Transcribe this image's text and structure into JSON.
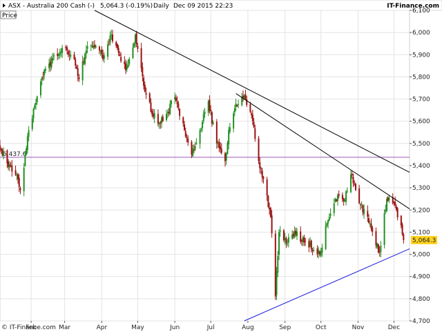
{
  "header": {
    "symbol_icon": "chevron-right-icon",
    "title": "ASX - Australia 200 Cash (-)",
    "last": "5,064.3 (-0.19%)",
    "period": "Daily",
    "timestamp": "Dec 09 2015 22:23",
    "brand": "IT-Finance.com"
  },
  "panel": {
    "label": "Price"
  },
  "footer": {
    "copyright": "© IT-Finance.com"
  },
  "colors": {
    "up": "#1f8f1f",
    "down": "#9a1010",
    "trend": "#000000",
    "support": "#1a1adf",
    "level": "#9b59b6",
    "badge": "#ffd21f",
    "grid": "#e3e3e3"
  },
  "chart_data": {
    "type": "candlestick",
    "title": "ASX - Australia 200 Cash (-)",
    "xlabel": "",
    "ylabel": "",
    "ylim": [
      4700,
      6100
    ],
    "y_ticks": [
      4700,
      4800,
      4900,
      5000,
      5100,
      5200,
      5300,
      5400,
      5500,
      5600,
      5700,
      5800,
      5900,
      6000,
      6100
    ],
    "y_tick_labels": [
      "4,700",
      "4,800",
      "4,900",
      "5,000",
      "5,100",
      "5,200",
      "5,300",
      "5,400",
      "5,500",
      "5,600",
      "5,700",
      "5,800",
      "5,900",
      "6,000",
      "6,100"
    ],
    "x_ticks": [
      "Feb",
      "Mar",
      "Apr",
      "May",
      "Jun",
      "Jul",
      "Aug",
      "Sep",
      "Oct",
      "Nov",
      "Dec"
    ],
    "x_tick_dates": [
      "2015-02-01",
      "2015-03-01",
      "2015-04-01",
      "2015-05-01",
      "2015-06-01",
      "2015-07-01",
      "2015-08-01",
      "2015-09-01",
      "2015-10-01",
      "2015-11-01",
      "2015-12-01"
    ],
    "x_range": [
      "2015-01-06",
      "2015-12-14"
    ],
    "grid": true,
    "horizontal_line": {
      "value": 5437.6,
      "label": "5,437.6"
    },
    "last_price": {
      "value": 5064.3,
      "label": "5,064.3"
    },
    "trendlines": [
      {
        "name": "",
        "start": [
          "2015-03-26",
          6100
        ],
        "end": [
          "2015-12-14",
          5370
        ]
      },
      {
        "name": "",
        "start": [
          "2015-07-22",
          5725
        ],
        "end": [
          "2015-12-14",
          5205
        ]
      },
      {
        "name": "",
        "start": [
          "2015-07-29",
          4700
        ],
        "end": [
          "2015-12-14",
          5025
        ]
      }
    ],
    "series": [
      {
        "name": "",
        "anchors": [
          [
            "2015-01-06",
            5480
          ],
          [
            "2015-01-12",
            5410
          ],
          [
            "2015-01-19",
            5360
          ],
          [
            "2015-01-23",
            5290
          ],
          [
            "2015-01-30",
            5560
          ],
          [
            "2015-02-09",
            5780
          ],
          [
            "2015-02-16",
            5860
          ],
          [
            "2015-02-24",
            5900
          ],
          [
            "2015-03-02",
            5930
          ],
          [
            "2015-03-09",
            5880
          ],
          [
            "2015-03-13",
            5790
          ],
          [
            "2015-03-19",
            5920
          ],
          [
            "2015-03-27",
            5940
          ],
          [
            "2015-04-02",
            5880
          ],
          [
            "2015-04-09",
            5990
          ],
          [
            "2015-04-14",
            5930
          ],
          [
            "2015-04-21",
            5830
          ],
          [
            "2015-04-29",
            5990
          ],
          [
            "2015-05-06",
            5760
          ],
          [
            "2015-05-13",
            5630
          ],
          [
            "2015-05-20",
            5590
          ],
          [
            "2015-05-26",
            5640
          ],
          [
            "2015-06-01",
            5710
          ],
          [
            "2015-06-09",
            5560
          ],
          [
            "2015-06-15",
            5450
          ],
          [
            "2015-06-22",
            5560
          ],
          [
            "2015-06-29",
            5690
          ],
          [
            "2015-07-06",
            5500
          ],
          [
            "2015-07-13",
            5420
          ],
          [
            "2015-07-16",
            5560
          ],
          [
            "2015-07-22",
            5680
          ],
          [
            "2015-07-30",
            5700
          ],
          [
            "2015-08-05",
            5600
          ],
          [
            "2015-08-10",
            5420
          ],
          [
            "2015-08-14",
            5340
          ],
          [
            "2015-08-20",
            5170
          ],
          [
            "2015-08-24",
            4810
          ],
          [
            "2015-08-27",
            5100
          ],
          [
            "2015-09-02",
            5050
          ],
          [
            "2015-09-10",
            5090
          ],
          [
            "2015-09-18",
            5060
          ],
          [
            "2015-09-25",
            5020
          ],
          [
            "2015-09-30",
            5000
          ],
          [
            "2015-10-06",
            5140
          ],
          [
            "2015-10-13",
            5250
          ],
          [
            "2015-10-20",
            5240
          ],
          [
            "2015-10-26",
            5360
          ],
          [
            "2015-11-02",
            5230
          ],
          [
            "2015-11-09",
            5170
          ],
          [
            "2015-11-16",
            5040
          ],
          [
            "2015-11-19",
            5010
          ],
          [
            "2015-11-25",
            5250
          ],
          [
            "2015-12-01",
            5230
          ],
          [
            "2015-12-07",
            5130
          ],
          [
            "2015-12-09",
            5064
          ]
        ]
      }
    ]
  }
}
